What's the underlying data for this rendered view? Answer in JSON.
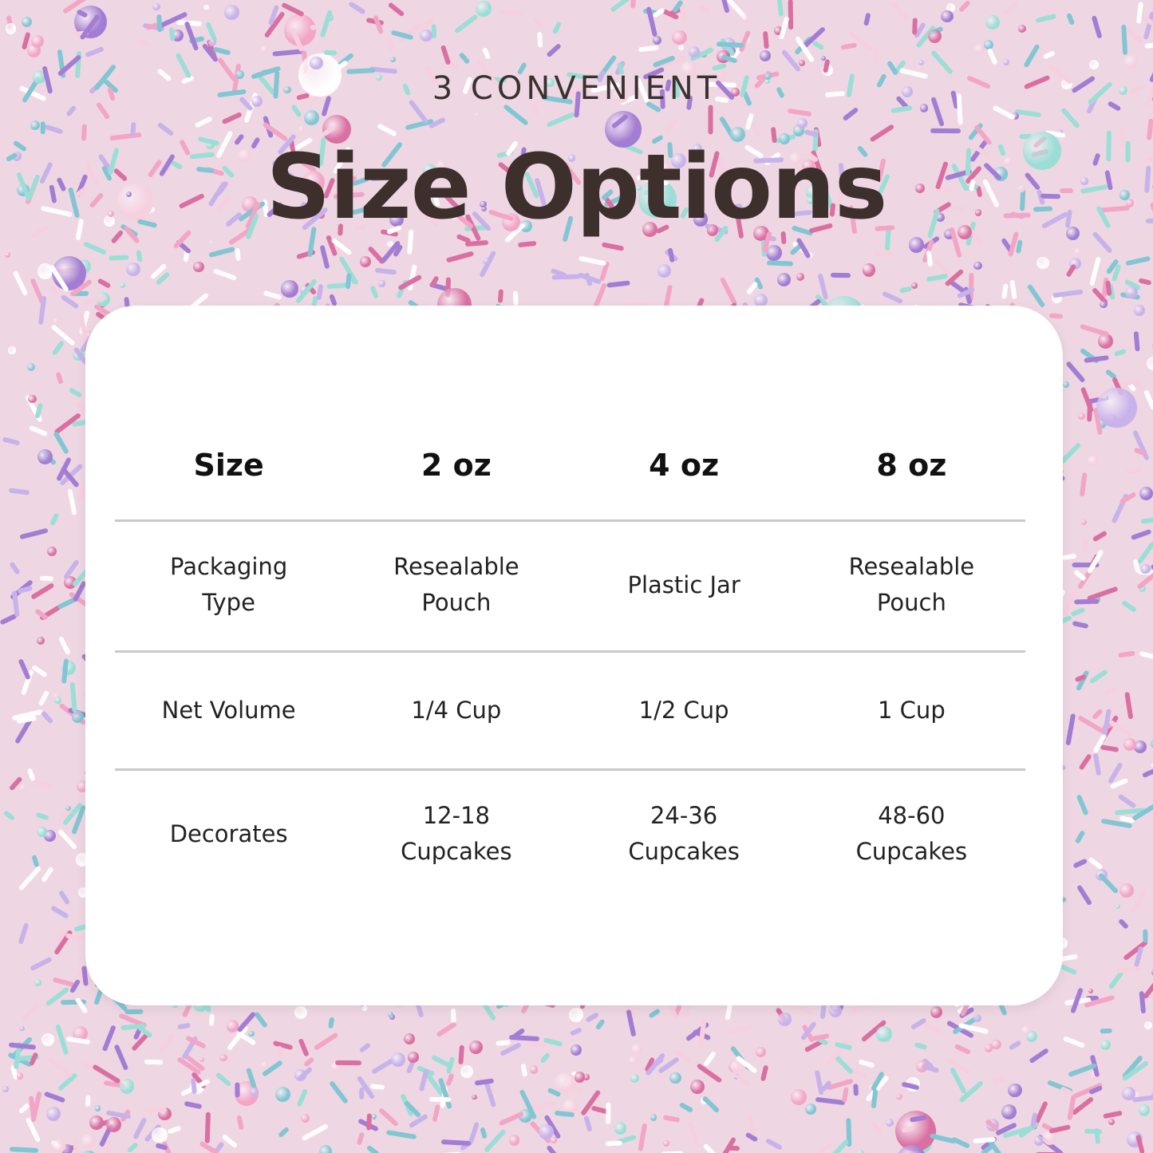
{
  "header": {
    "eyebrow": "3 CONVENIENT",
    "title": "Size Options"
  },
  "table": {
    "columns": [
      "Size",
      "2 oz",
      "4 oz",
      "8 oz"
    ],
    "rows": [
      [
        "Packaging\nType",
        "Resealable\nPouch",
        "Plastic Jar",
        "Resealable\nPouch"
      ],
      [
        "Net Volume",
        "1/4 Cup",
        "1/2 Cup",
        "1 Cup"
      ],
      [
        "Decorates",
        "12-18\nCupcakes",
        "24-36\nCupcakes",
        "48-60\nCupcakes"
      ]
    ]
  },
  "colors": {
    "title": "#3d302c",
    "card": "#ffffff",
    "divider": "#c9c9c6",
    "sprinkles": [
      "#f08fb8",
      "#b8a0e6",
      "#7fd8cc",
      "#ffffff",
      "#d04a8a",
      "#8a5cc8",
      "#f4c6d8",
      "#5fb8c8"
    ]
  }
}
